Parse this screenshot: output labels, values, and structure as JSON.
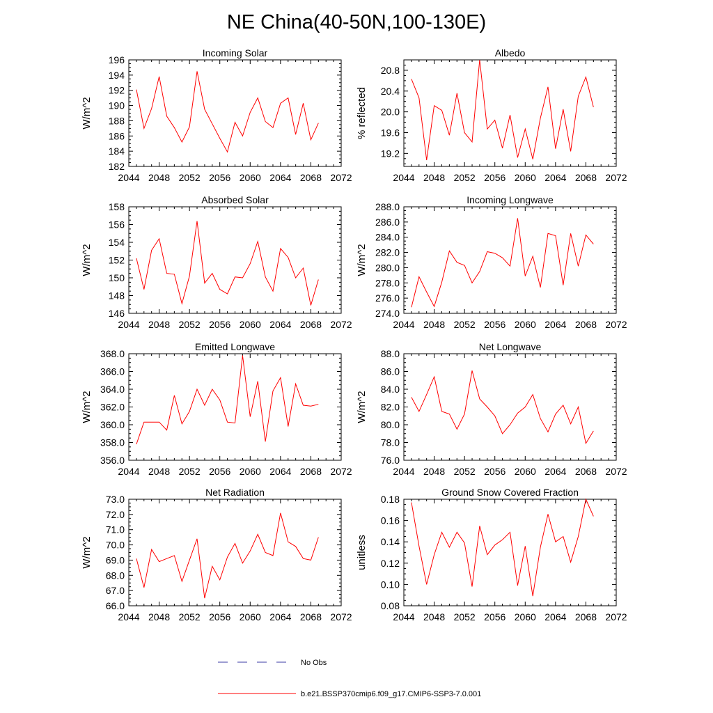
{
  "page_title": "NE China(40-50N,100-130E)",
  "legend": {
    "obs_label": "No Obs",
    "model_label": "b.e21.BSSP370cmip6.f09_g17.CMIP6-SSP3-7.0.001",
    "obs_color": "#3a3aa6",
    "model_color": "#ff0000"
  },
  "chart_data": [
    {
      "type": "line",
      "title": "Incoming Solar",
      "ylabel": "W/m^2",
      "xlim": [
        2044,
        2072
      ],
      "x_ticks": [
        "2044",
        "2048",
        "2052",
        "2056",
        "2060",
        "2064",
        "2068",
        "2072"
      ],
      "ylim": [
        182,
        196
      ],
      "y_ticks": [
        "182",
        "184",
        "186",
        "188",
        "190",
        "192",
        "194",
        "196"
      ],
      "x": [
        2045,
        2046,
        2047,
        2048,
        2049,
        2050,
        2051,
        2052,
        2053,
        2054,
        2055,
        2056,
        2057,
        2058,
        2059,
        2060,
        2061,
        2062,
        2063,
        2064,
        2065,
        2066,
        2067,
        2068,
        2069
      ],
      "series": [
        {
          "values": [
            192.1,
            187.0,
            189.6,
            193.8,
            188.6,
            187.1,
            185.2,
            187.2,
            194.5,
            189.5,
            187.6,
            185.7,
            183.9,
            187.8,
            186.0,
            189.1,
            191.0,
            187.9,
            187.1,
            190.3,
            191.0,
            186.2,
            190.3,
            185.5,
            187.7
          ]
        }
      ]
    },
    {
      "type": "line",
      "title": "Albedo",
      "ylabel": "% reflected",
      "xlim": [
        2044,
        2072
      ],
      "x_ticks": [
        "2044",
        "2048",
        "2052",
        "2056",
        "2060",
        "2064",
        "2068",
        "2072"
      ],
      "ylim": [
        18.95,
        21.0
      ],
      "y_ticks": [
        "19.2",
        "19.6",
        "20.0",
        "20.4",
        "20.8"
      ],
      "x": [
        2045,
        2046,
        2047,
        2048,
        2049,
        2050,
        2051,
        2052,
        2053,
        2054,
        2055,
        2056,
        2057,
        2058,
        2059,
        2060,
        2061,
        2062,
        2063,
        2064,
        2065,
        2066,
        2067,
        2068,
        2069
      ],
      "series": [
        {
          "values": [
            20.63,
            20.27,
            19.07,
            20.12,
            20.03,
            19.55,
            20.36,
            19.6,
            19.42,
            21.0,
            19.67,
            19.84,
            19.3,
            19.94,
            19.12,
            19.67,
            19.09,
            19.88,
            20.48,
            19.29,
            20.05,
            19.24,
            20.3,
            20.67,
            20.09
          ]
        }
      ]
    },
    {
      "type": "line",
      "title": "Absorbed Solar",
      "ylabel": "W/m^2",
      "xlim": [
        2044,
        2072
      ],
      "x_ticks": [
        "2044",
        "2048",
        "2052",
        "2056",
        "2060",
        "2064",
        "2068",
        "2072"
      ],
      "ylim": [
        146,
        158
      ],
      "y_ticks": [
        "146",
        "148",
        "150",
        "152",
        "154",
        "156",
        "158"
      ],
      "x": [
        2045,
        2046,
        2047,
        2048,
        2049,
        2050,
        2051,
        2052,
        2053,
        2054,
        2055,
        2056,
        2057,
        2058,
        2059,
        2060,
        2061,
        2062,
        2063,
        2064,
        2065,
        2066,
        2067,
        2068,
        2069
      ],
      "series": [
        {
          "values": [
            152.2,
            148.7,
            153.1,
            154.4,
            150.5,
            150.4,
            147.1,
            150.2,
            156.4,
            149.4,
            150.5,
            148.7,
            148.2,
            150.1,
            150.0,
            151.6,
            154.1,
            150.1,
            148.5,
            153.3,
            152.3,
            150.0,
            151.1,
            146.9,
            149.8
          ]
        }
      ]
    },
    {
      "type": "line",
      "title": "Incoming Longwave",
      "ylabel": "W/m^2",
      "xlim": [
        2044,
        2072
      ],
      "x_ticks": [
        "2044",
        "2048",
        "2052",
        "2056",
        "2060",
        "2064",
        "2068",
        "2072"
      ],
      "ylim": [
        274.0,
        288.0
      ],
      "y_ticks": [
        "274.0",
        "276.0",
        "278.0",
        "280.0",
        "282.0",
        "284.0",
        "286.0",
        "288.0"
      ],
      "x": [
        2045,
        2046,
        2047,
        2048,
        2049,
        2050,
        2051,
        2052,
        2053,
        2054,
        2055,
        2056,
        2057,
        2058,
        2059,
        2060,
        2061,
        2062,
        2063,
        2064,
        2065,
        2066,
        2067,
        2068,
        2069
      ],
      "series": [
        {
          "values": [
            274.8,
            278.8,
            276.8,
            274.9,
            278.1,
            282.2,
            280.7,
            280.3,
            278.0,
            279.5,
            282.1,
            281.9,
            281.3,
            280.2,
            286.5,
            278.9,
            281.5,
            277.4,
            284.5,
            284.2,
            277.7,
            284.5,
            280.2,
            284.3,
            283.1
          ]
        }
      ]
    },
    {
      "type": "line",
      "title": "Emitted Longwave",
      "ylabel": "W/m^2",
      "xlim": [
        2044,
        2072
      ],
      "x_ticks": [
        "2044",
        "2048",
        "2052",
        "2056",
        "2060",
        "2064",
        "2068",
        "2072"
      ],
      "ylim": [
        356.0,
        368.0
      ],
      "y_ticks": [
        "356.0",
        "358.0",
        "360.0",
        "362.0",
        "364.0",
        "366.0",
        "368.0"
      ],
      "x": [
        2045,
        2046,
        2047,
        2048,
        2049,
        2050,
        2051,
        2052,
        2053,
        2054,
        2055,
        2056,
        2057,
        2058,
        2059,
        2060,
        2061,
        2062,
        2063,
        2064,
        2065,
        2066,
        2067,
        2068,
        2069
      ],
      "series": [
        {
          "values": [
            357.8,
            360.3,
            360.3,
            360.3,
            359.4,
            363.3,
            360.1,
            361.5,
            364.0,
            362.2,
            364.0,
            362.8,
            360.3,
            360.2,
            367.8,
            360.9,
            364.9,
            358.1,
            363.8,
            365.3,
            359.8,
            364.6,
            362.2,
            362.1,
            362.3
          ]
        }
      ]
    },
    {
      "type": "line",
      "title": "Net Longwave",
      "ylabel": "W/m^2",
      "xlim": [
        2044,
        2072
      ],
      "x_ticks": [
        "2044",
        "2048",
        "2052",
        "2056",
        "2060",
        "2064",
        "2068",
        "2072"
      ],
      "ylim": [
        76.0,
        88.0
      ],
      "y_ticks": [
        "76.0",
        "78.0",
        "80.0",
        "82.0",
        "84.0",
        "86.0",
        "88.0"
      ],
      "x": [
        2045,
        2046,
        2047,
        2048,
        2049,
        2050,
        2051,
        2052,
        2053,
        2054,
        2055,
        2056,
        2057,
        2058,
        2059,
        2060,
        2061,
        2062,
        2063,
        2064,
        2065,
        2066,
        2067,
        2068,
        2069
      ],
      "series": [
        {
          "values": [
            83.1,
            81.5,
            83.4,
            85.4,
            81.5,
            81.2,
            79.5,
            81.2,
            86.1,
            82.9,
            82.0,
            81.0,
            79.0,
            80.0,
            81.3,
            82.0,
            83.4,
            80.7,
            79.2,
            81.2,
            82.2,
            80.1,
            82.0,
            77.9,
            79.3
          ]
        }
      ]
    },
    {
      "type": "line",
      "title": "Net Radiation",
      "ylabel": "W/m^2",
      "xlim": [
        2044,
        2072
      ],
      "x_ticks": [
        "2044",
        "2048",
        "2052",
        "2056",
        "2060",
        "2064",
        "2068",
        "2072"
      ],
      "ylim": [
        66.0,
        73.0
      ],
      "y_ticks": [
        "66.0",
        "67.0",
        "68.0",
        "69.0",
        "70.0",
        "71.0",
        "72.0",
        "73.0"
      ],
      "x": [
        2045,
        2046,
        2047,
        2048,
        2049,
        2050,
        2051,
        2052,
        2053,
        2054,
        2055,
        2056,
        2057,
        2058,
        2059,
        2060,
        2061,
        2062,
        2063,
        2064,
        2065,
        2066,
        2067,
        2068,
        2069
      ],
      "series": [
        {
          "values": [
            69.1,
            67.2,
            69.7,
            68.9,
            69.1,
            69.3,
            67.6,
            69.0,
            70.4,
            66.5,
            68.6,
            67.7,
            69.2,
            70.1,
            68.8,
            69.6,
            70.7,
            69.5,
            69.3,
            72.1,
            70.2,
            69.9,
            69.1,
            69.0,
            70.5
          ]
        }
      ]
    },
    {
      "type": "line",
      "title": "Ground Snow Covered Fraction",
      "ylabel": "unitless",
      "xlim": [
        2044,
        2072
      ],
      "x_ticks": [
        "2044",
        "2048",
        "2052",
        "2056",
        "2060",
        "2064",
        "2068",
        "2072"
      ],
      "ylim": [
        0.08,
        0.18
      ],
      "y_ticks": [
        "0.08",
        "0.10",
        "0.12",
        "0.14",
        "0.16",
        "0.18"
      ],
      "x": [
        2045,
        2046,
        2047,
        2048,
        2049,
        2050,
        2051,
        2052,
        2053,
        2054,
        2055,
        2056,
        2057,
        2058,
        2059,
        2060,
        2061,
        2062,
        2063,
        2064,
        2065,
        2066,
        2067,
        2068,
        2069
      ],
      "series": [
        {
          "values": [
            0.177,
            0.136,
            0.1,
            0.128,
            0.149,
            0.135,
            0.149,
            0.139,
            0.098,
            0.155,
            0.128,
            0.137,
            0.142,
            0.149,
            0.099,
            0.136,
            0.089,
            0.135,
            0.166,
            0.14,
            0.145,
            0.121,
            0.145,
            0.18,
            0.164
          ]
        }
      ]
    }
  ]
}
